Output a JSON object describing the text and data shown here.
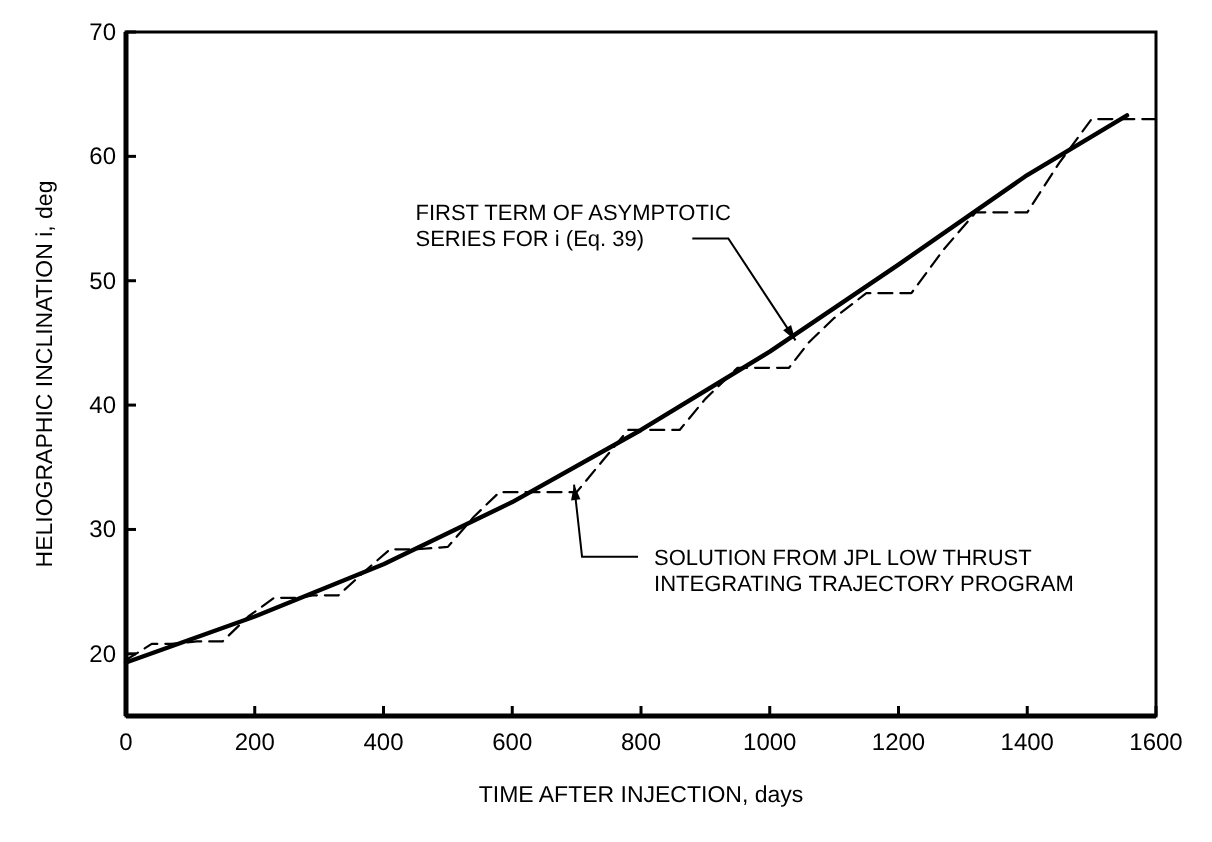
{
  "chart_data": {
    "type": "line",
    "xlabel": "TIME AFTER INJECTION, days",
    "ylabel": "HELIOGRAPHIC INCLINATION i, deg",
    "xlim": [
      0,
      1600
    ],
    "ylim": [
      15,
      70
    ],
    "xticks": [
      0,
      200,
      400,
      600,
      800,
      1000,
      1200,
      1400,
      1600
    ],
    "yticks": [
      20,
      30,
      40,
      50,
      60,
      70
    ],
    "grid": false,
    "series": [
      {
        "color": "#000000",
        "line_style": "solid",
        "x": [
          0,
          200,
          400,
          600,
          800,
          1000,
          1200,
          1400,
          1555
        ],
        "values": [
          19.3,
          23.0,
          27.2,
          32.2,
          38.0,
          44.3,
          51.3,
          58.5,
          63.3
        ]
      },
      {
        "color": "#000000",
        "line_style": "dashed",
        "x": [
          0,
          40,
          70,
          110,
          150,
          190,
          230,
          270,
          290,
          330,
          370,
          410,
          450,
          500,
          540,
          580,
          620,
          700,
          740,
          780,
          820,
          860,
          900,
          950,
          990,
          1030,
          1060,
          1100,
          1150,
          1220,
          1270,
          1320,
          1360,
          1400,
          1450,
          1500,
          1550,
          1600
        ],
        "values": [
          19.5,
          20.8,
          20.8,
          21.0,
          21.0,
          23.0,
          24.5,
          24.5,
          24.7,
          24.7,
          26.6,
          28.4,
          28.4,
          28.6,
          31.0,
          33.0,
          33.0,
          33.0,
          35.5,
          38.0,
          38.0,
          38.0,
          40.5,
          43.0,
          43.0,
          43.0,
          45.0,
          47.0,
          49.0,
          49.0,
          52.5,
          55.5,
          55.5,
          55.5,
          59.5,
          63.0,
          63.0,
          63.0
        ]
      }
    ],
    "annotations": [
      {
        "text": "FIRST TERM OF ASYMPTOTIC\nSERIES FOR i (Eq. 39)",
        "x": 1040,
        "y": 45.2
      },
      {
        "text": "SOLUTION FROM JPL LOW THRUST\nINTEGRATING TRAJECTORY PROGRAM",
        "x": 696,
        "y": 33.6
      }
    ]
  }
}
